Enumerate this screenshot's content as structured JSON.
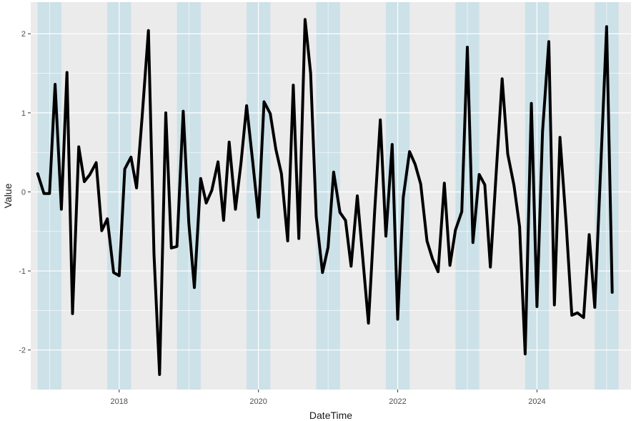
{
  "chart_data": {
    "type": "line",
    "title": "",
    "xlabel": "DateTime",
    "ylabel": "Value",
    "xlim": [
      2016.73,
      2025.35
    ],
    "ylim": [
      -2.5,
      2.4
    ],
    "grid": true,
    "x_ticks": [
      {
        "value": 2018,
        "label": "2018"
      },
      {
        "value": 2020,
        "label": "2020"
      },
      {
        "value": 2022,
        "label": "2022"
      },
      {
        "value": 2024,
        "label": "2024"
      }
    ],
    "y_ticks": [
      {
        "value": 2,
        "label": "2"
      },
      {
        "value": 1,
        "label": "1"
      },
      {
        "value": 0,
        "label": "0"
      },
      {
        "value": -1,
        "label": "-1"
      },
      {
        "value": -2,
        "label": "-2"
      }
    ],
    "shaded_periods": [
      [
        2016.83,
        2017.17
      ],
      [
        2017.83,
        2018.17
      ],
      [
        2018.83,
        2019.17
      ],
      [
        2019.83,
        2020.17
      ],
      [
        2020.83,
        2021.17
      ],
      [
        2021.83,
        2022.17
      ],
      [
        2022.83,
        2023.17
      ],
      [
        2023.83,
        2024.17
      ],
      [
        2024.83,
        2025.17
      ]
    ],
    "colors": {
      "line": "#000000",
      "shade": "#add8e6",
      "panel": "#ebebeb",
      "grid": "#ffffff"
    },
    "series": [
      {
        "x": [
          2016.83,
          2016.92,
          2017.0,
          2017.08,
          2017.17,
          2017.25,
          2017.33,
          2017.42,
          2017.5,
          2017.58,
          2017.67,
          2017.75,
          2017.83,
          2017.92,
          2018.0,
          2018.08,
          2018.17,
          2018.25,
          2018.33,
          2018.42,
          2018.5,
          2018.58,
          2018.67,
          2018.75,
          2018.83,
          2018.92,
          2019.0,
          2019.08,
          2019.17,
          2019.25,
          2019.33,
          2019.42,
          2019.5,
          2019.58,
          2019.67,
          2019.75,
          2019.83,
          2019.92,
          2020.0,
          2020.08,
          2020.17,
          2020.25,
          2020.33,
          2020.42,
          2020.5,
          2020.58,
          2020.67,
          2020.75,
          2020.83,
          2020.92,
          2021.0,
          2021.08,
          2021.17,
          2021.25,
          2021.33,
          2021.42,
          2021.5,
          2021.58,
          2021.67,
          2021.75,
          2021.83,
          2021.92,
          2022.0,
          2022.08,
          2022.17,
          2022.25,
          2022.33,
          2022.42,
          2022.5,
          2022.58,
          2022.67,
          2022.75,
          2022.83,
          2022.92,
          2023.0,
          2023.08,
          2023.17,
          2023.25,
          2023.33,
          2023.42,
          2023.5,
          2023.58,
          2023.67,
          2023.75,
          2023.83,
          2023.92,
          2024.0,
          2024.08,
          2024.17,
          2024.25,
          2024.33,
          2024.42,
          2024.5,
          2024.58,
          2024.67,
          2024.75,
          2024.83,
          2024.92,
          2025.0,
          2025.08
        ],
        "values": [
          0.23,
          -0.02,
          -0.02,
          1.36,
          -0.22,
          1.51,
          -1.54,
          0.57,
          0.13,
          0.22,
          0.37,
          -0.49,
          -0.34,
          -1.02,
          -1.06,
          0.29,
          0.44,
          0.05,
          0.95,
          2.04,
          -0.79,
          -2.31,
          1.0,
          -0.71,
          -0.69,
          1.02,
          -0.39,
          -1.21,
          0.17,
          -0.14,
          0.02,
          0.38,
          -0.36,
          0.63,
          -0.22,
          0.37,
          1.09,
          0.36,
          -0.32,
          1.14,
          0.99,
          0.54,
          0.23,
          -0.62,
          1.35,
          -0.59,
          2.18,
          1.5,
          -0.31,
          -1.02,
          -0.7,
          0.25,
          -0.26,
          -0.36,
          -0.94,
          -0.05,
          -0.85,
          -1.66,
          -0.23,
          0.91,
          -0.56,
          0.6,
          -1.61,
          -0.07,
          0.51,
          0.35,
          0.1,
          -0.62,
          -0.85,
          -1.01,
          0.11,
          -0.93,
          -0.48,
          -0.25,
          1.83,
          -0.64,
          0.22,
          0.09,
          -0.95,
          0.32,
          1.43,
          0.48,
          0.08,
          -0.44,
          -2.05,
          1.12,
          -1.45,
          0.76,
          1.9,
          -1.43,
          0.69,
          -0.42,
          -1.56,
          -1.53,
          -1.59,
          -0.54,
          -1.46,
          0.41,
          2.09,
          -1.27
        ]
      }
    ]
  }
}
